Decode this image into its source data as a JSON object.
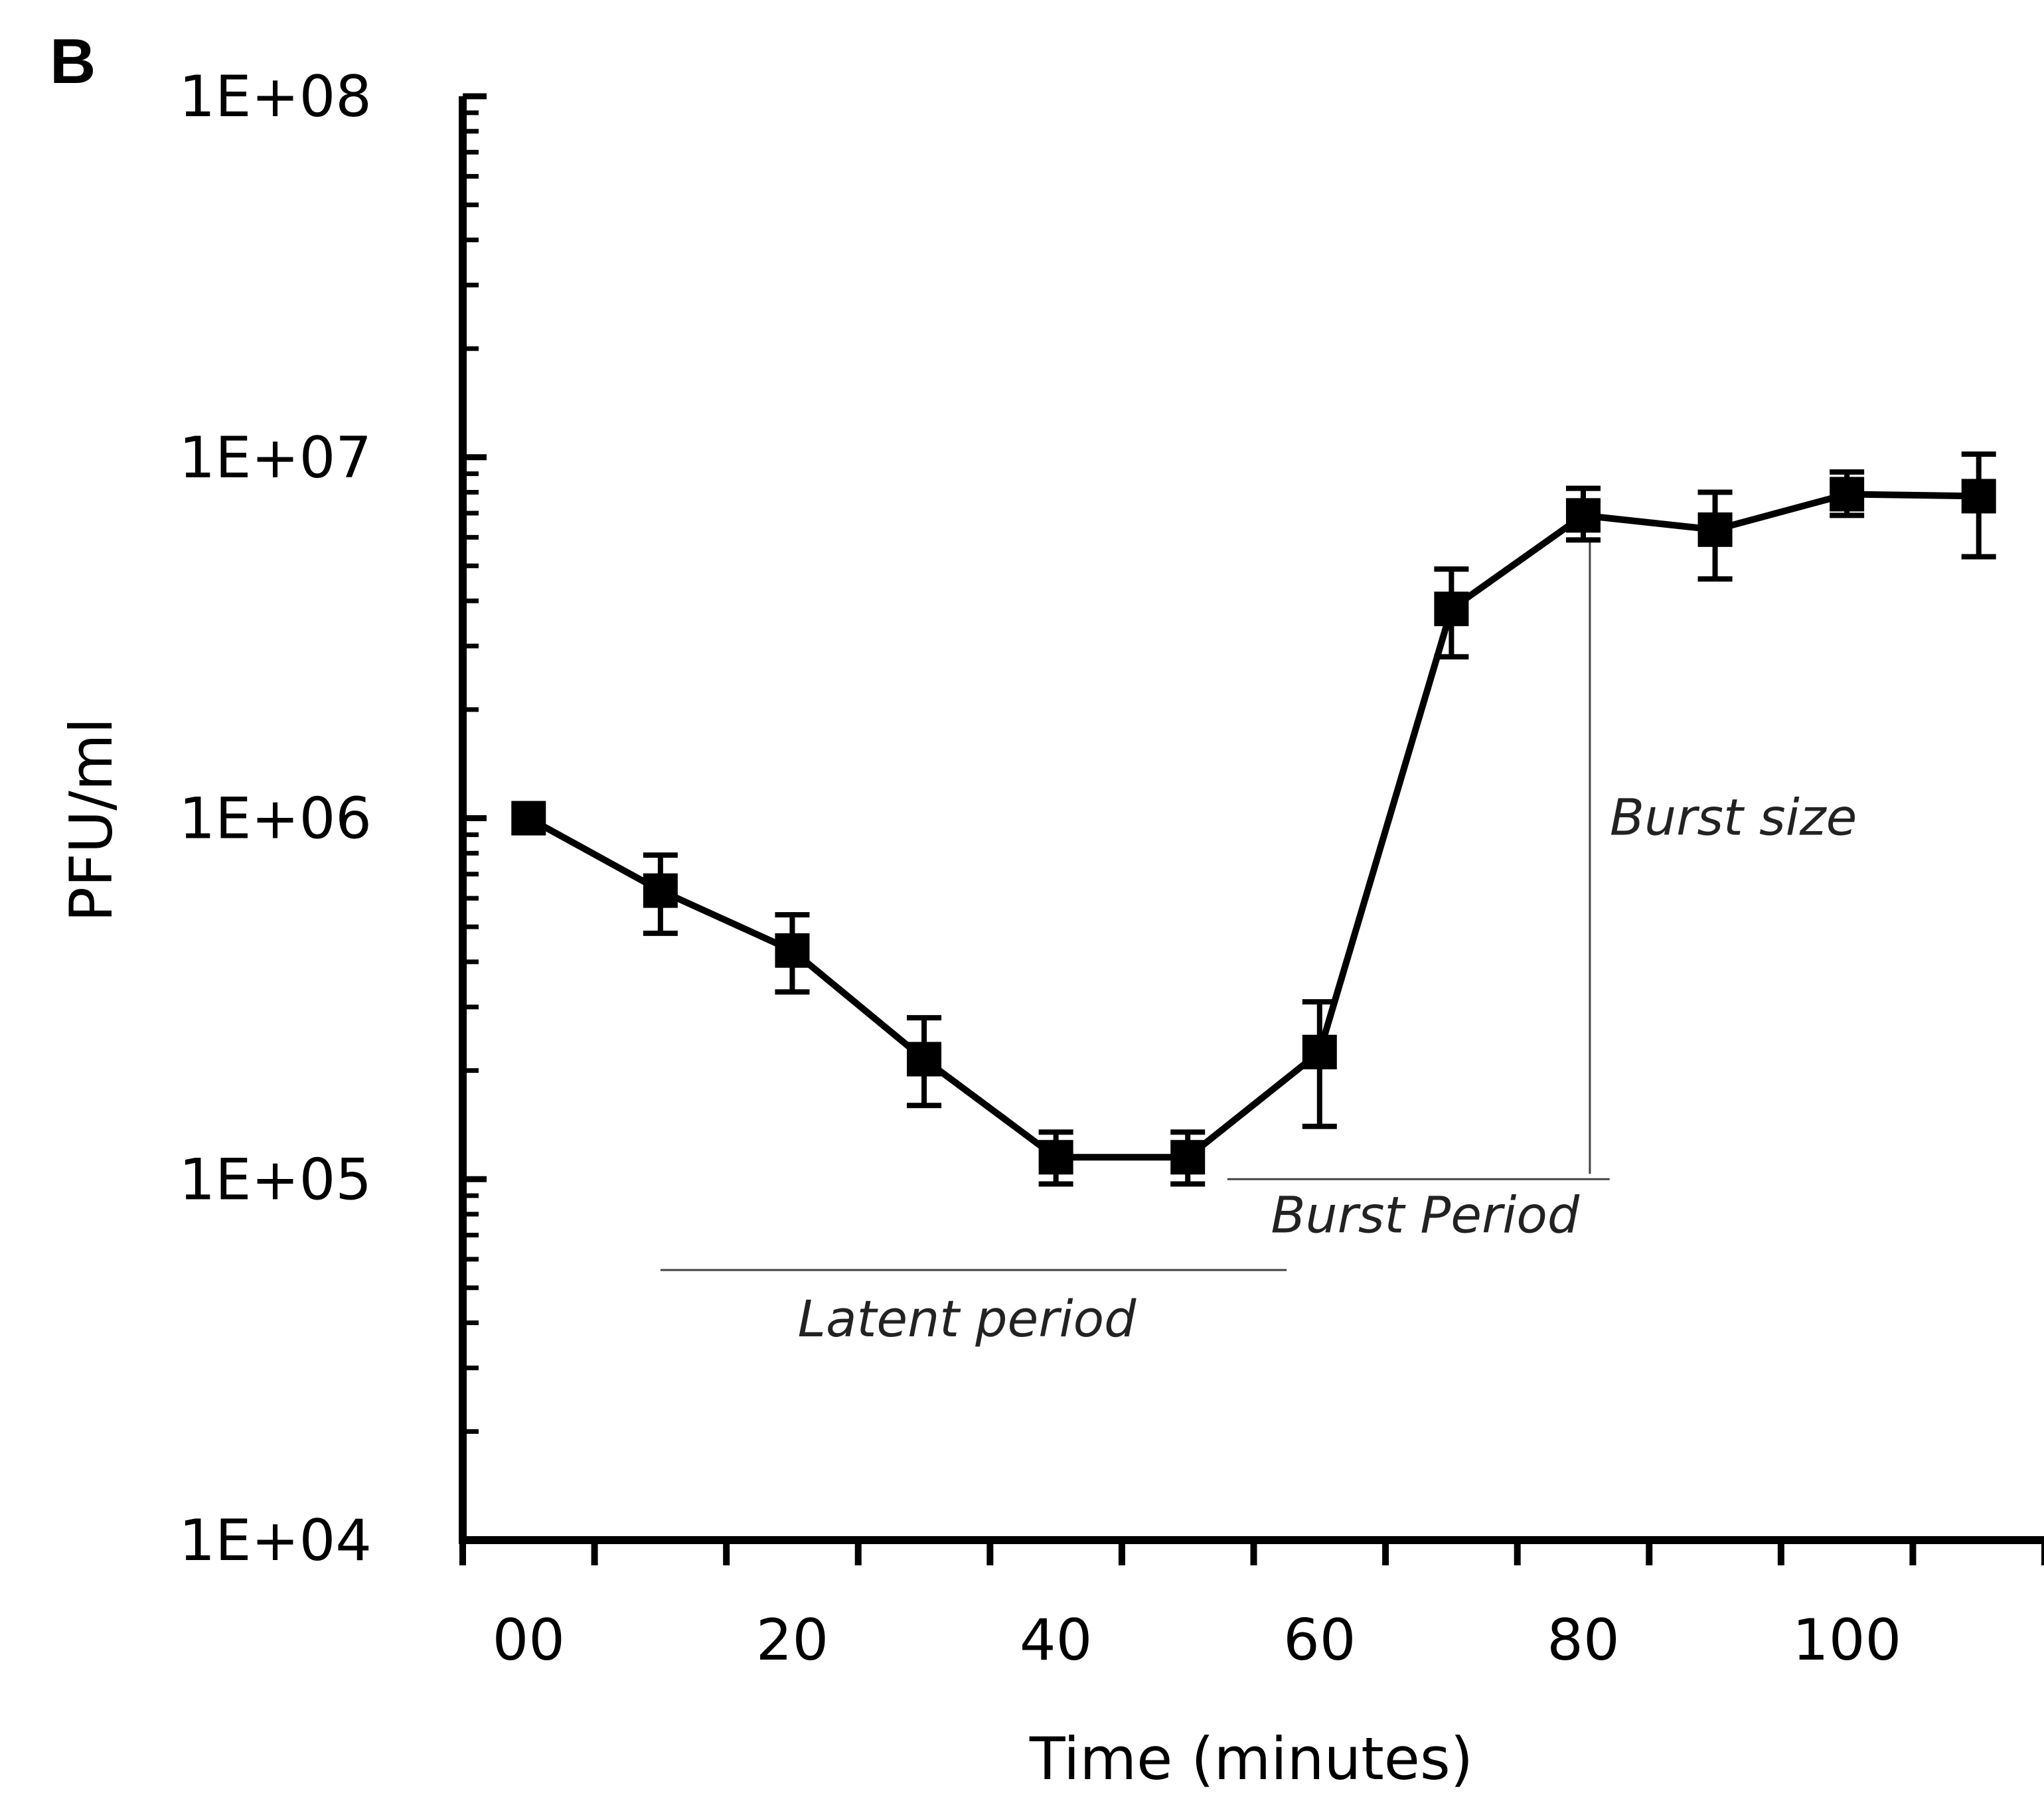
{
  "chart_data": {
    "type": "line",
    "panel_label": "B",
    "title": "",
    "xlabel": "Time (minutes)",
    "ylabel": "PFU/ml",
    "yscale": "log",
    "xlim": [
      -5,
      115
    ],
    "ylim": [
      10000,
      100000000
    ],
    "xticks": [
      -5,
      5,
      15,
      25,
      35,
      45,
      55,
      65,
      75,
      85,
      95,
      105,
      115
    ],
    "xtick_labels": [
      {
        "x": 0,
        "label": "00"
      },
      {
        "x": 20,
        "label": "20"
      },
      {
        "x": 40,
        "label": "40"
      },
      {
        "x": 60,
        "label": "60"
      },
      {
        "x": 80,
        "label": "80"
      },
      {
        "x": 100,
        "label": "100"
      }
    ],
    "ytick_labels": [
      {
        "y": 10000,
        "label": "1E+04"
      },
      {
        "y": 100000,
        "label": "1E+05"
      },
      {
        "y": 1000000,
        "label": "1E+06"
      },
      {
        "y": 10000000,
        "label": "1E+07"
      },
      {
        "y": 100000000,
        "label": "1E+08"
      }
    ],
    "series": [
      {
        "name": "PFU/ml",
        "x": [
          0,
          10,
          20,
          30,
          40,
          50,
          60,
          70,
          80,
          90,
          100,
          110
        ],
        "y": [
          1000000,
          630000,
          430000,
          215000,
          115000,
          115000,
          225000,
          3800000,
          6900000,
          6300000,
          7900000,
          7800000
        ],
        "err_low": [
          1000000,
          480000,
          330000,
          160000,
          97000,
          97000,
          140000,
          2800000,
          5900000,
          4600000,
          6900000,
          5300000
        ],
        "err_high": [
          1000000,
          790000,
          540000,
          280000,
          135000,
          135000,
          310000,
          4900000,
          8200000,
          8000000,
          9100000,
          10200000
        ]
      }
    ],
    "annotations": [
      {
        "text": "Latent period",
        "x_start": 10,
        "x_end": 57.5,
        "y_line": 56000
      },
      {
        "text": "Burst Period",
        "x_start": 53,
        "x_end": 82,
        "y_line": 100000
      },
      {
        "text": "Burst size",
        "x_line": 80.5,
        "y_start": 100000,
        "y_end": 6000000
      }
    ],
    "grid": false,
    "legend": "none"
  }
}
